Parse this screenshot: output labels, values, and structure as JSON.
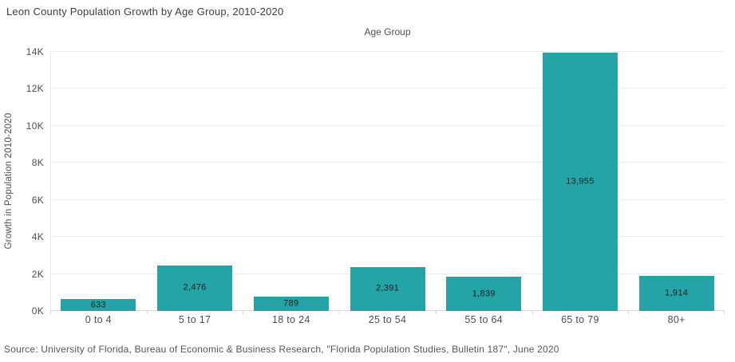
{
  "title": "Leon County Population Growth by Age Group, 2010-2020",
  "source": "Source: University of Florida, Bureau of Economic & Business Research, \"Florida Population Studies, Bulletin 187\", June 2020",
  "chart_data": {
    "type": "bar",
    "title": "Leon County Population Growth by Age Group, 2010-2020",
    "xlabel": "Age Group",
    "ylabel": "Growth in Population 2010-2020",
    "categories": [
      "0 to 4",
      "5 to 17",
      "18 to 24",
      "25 to 54",
      "55 to 64",
      "65 to 79",
      "80+"
    ],
    "values": [
      633,
      2476,
      789,
      2391,
      1839,
      13955,
      1914
    ],
    "value_labels": [
      "633",
      "2,476",
      "789",
      "2,391",
      "1,839",
      "13,955",
      "1,914"
    ],
    "ylim": [
      0,
      14000
    ],
    "ytick_interval": 2000,
    "ytick_labels": [
      "0K",
      "2K",
      "4K",
      "6K",
      "8K",
      "10K",
      "12K",
      "14K"
    ],
    "grid": "horizontal",
    "legend": "none",
    "bar_color": "#25a4a8",
    "colors": {
      "bar": "#25a4a8",
      "gridline": "#ededed",
      "axis_line": "#dcdcdc",
      "tick_text": "#4d4d4d",
      "title_text": "#3d3d3d",
      "value_text": "#1e1e1e",
      "source_text": "#555555"
    }
  }
}
